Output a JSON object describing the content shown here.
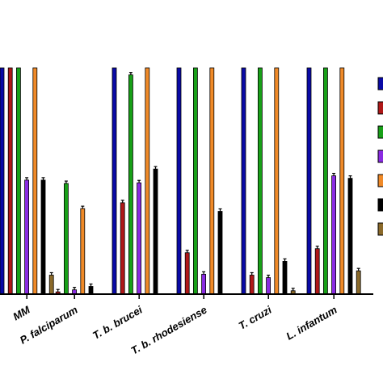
{
  "chart_data": {
    "type": "bar",
    "categories": [
      "MM",
      "P. falciparum",
      "T. b. brucei",
      "T. b. rhodesiense",
      "T. cruzi",
      "L. infantum"
    ],
    "ylim": [
      0,
      100
    ],
    "legend": "right",
    "grid": false,
    "series": [
      {
        "color": "#0a0aa6",
        "values": [
          100,
          0,
          100,
          100,
          100,
          100
        ]
      },
      {
        "color": "#b01818",
        "values": [
          100,
          1,
          40.4,
          18.3,
          8.4,
          20.1
        ]
      },
      {
        "color": "#18a018",
        "values": [
          100,
          48.9,
          96.9,
          100,
          100,
          100
        ]
      },
      {
        "color": "#8a2be2",
        "values": [
          50.4,
          1.9,
          49.2,
          8.8,
          7.3,
          52.3
        ]
      },
      {
        "color": "#f08a28",
        "values": [
          100,
          37.8,
          100,
          100,
          100,
          100
        ]
      },
      {
        "color": "#000000",
        "values": [
          50.4,
          3.4,
          55.3,
          36.6,
          14.5,
          51.2
        ]
      },
      {
        "color": "#8b6a2a",
        "values": [
          8.4,
          0,
          0,
          0,
          1.5,
          10.3
        ]
      }
    ]
  }
}
